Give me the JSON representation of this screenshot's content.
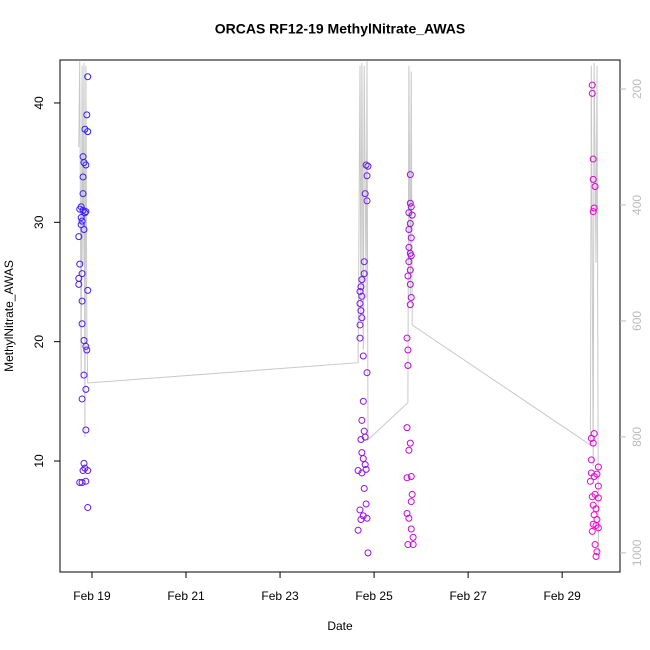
{
  "chart_data": {
    "type": "scatter",
    "title": "ORCAS RF12-19 MethylNitrate_AWAS",
    "xlabel": "Date",
    "ylabel": "MethylNitrate_AWAS",
    "xlim": [
      18.32,
      30.23
    ],
    "xticks": [
      {
        "value": 19,
        "label": "Feb 19"
      },
      {
        "value": 21,
        "label": "Feb 21"
      },
      {
        "value": 23,
        "label": "Feb 23"
      },
      {
        "value": 25,
        "label": "Feb 25"
      },
      {
        "value": 27,
        "label": "Feb 27"
      },
      {
        "value": 29,
        "label": "Feb 29"
      }
    ],
    "ylim": [
      0.7,
      43.6
    ],
    "yticks": [
      10,
      20,
      30,
      40
    ],
    "y2lim": [
      1033,
      150
    ],
    "y2ticks": [
      200,
      400,
      600,
      800,
      1000
    ],
    "y2color": "#bbbbbb",
    "series": [
      {
        "colormap": [
          "#2a1fff",
          "#ff00cc"
        ],
        "x": [
          18.91,
          18.89,
          18.85,
          18.91,
          18.81,
          18.83,
          18.87,
          18.81,
          18.81,
          18.77,
          18.74,
          18.81,
          18.85,
          18.77,
          18.87,
          18.79,
          18.77,
          18.83,
          18.72,
          18.74,
          18.79,
          18.72,
          18.72,
          18.91,
          18.79,
          18.79,
          18.83,
          18.87,
          18.89,
          18.83,
          18.87,
          18.79,
          18.87,
          18.83,
          18.85,
          18.81,
          18.87,
          18.91,
          18.74,
          18.79,
          18.91,
          24.83,
          24.87,
          24.85,
          24.81,
          24.85,
          24.79,
          24.79,
          24.74,
          24.72,
          24.7,
          24.74,
          24.7,
          24.72,
          24.74,
          24.7,
          24.7,
          24.77,
          24.85,
          24.77,
          24.74,
          24.79,
          24.72,
          24.81,
          24.74,
          24.77,
          24.81,
          24.66,
          24.74,
          24.83,
          24.79,
          24.7,
          24.77,
          24.85,
          24.72,
          24.66,
          24.87,
          24.83,
          25.77,
          25.77,
          25.79,
          25.74,
          25.81,
          25.77,
          25.74,
          25.79,
          25.74,
          25.77,
          25.79,
          25.74,
          25.77,
          25.72,
          25.77,
          25.79,
          25.77,
          25.7,
          25.72,
          25.72,
          25.7,
          25.77,
          25.74,
          25.7,
          25.79,
          25.81,
          25.79,
          25.7,
          25.74,
          25.79,
          25.83,
          25.83,
          25.72,
          29.64,
          29.64,
          29.66,
          29.66,
          29.7,
          29.68,
          29.66,
          29.68,
          29.62,
          29.66,
          29.62,
          29.77,
          29.62,
          29.68,
          29.74,
          29.6,
          29.77,
          29.64,
          29.7,
          29.77,
          29.66,
          29.72,
          29.68,
          29.74,
          29.66,
          29.72,
          29.77,
          29.64,
          29.7,
          29.74,
          29.72
        ],
        "values": [
          42.2,
          39.0,
          37.8,
          37.6,
          35.5,
          35.0,
          34.8,
          33.8,
          32.4,
          31.3,
          31.1,
          31.0,
          30.8,
          30.4,
          30.9,
          30.1,
          29.8,
          29.4,
          28.8,
          26.5,
          25.7,
          25.3,
          24.8,
          24.3,
          23.4,
          21.5,
          20.1,
          19.6,
          19.3,
          17.2,
          16.0,
          15.2,
          12.6,
          9.8,
          9.4,
          9.2,
          8.3,
          9.2,
          8.2,
          8.2,
          6.1,
          34.8,
          34.7,
          33.9,
          32.4,
          31.8,
          26.7,
          25.7,
          25.2,
          24.6,
          24.2,
          23.8,
          23.2,
          22.6,
          22.0,
          21.4,
          20.3,
          18.8,
          17.4,
          15.0,
          13.4,
          12.5,
          11.8,
          12.0,
          10.7,
          10.2,
          9.7,
          9.2,
          9.0,
          9.3,
          7.7,
          5.9,
          5.4,
          5.2,
          5.1,
          4.2,
          2.3,
          6.4,
          34.0,
          31.6,
          31.3,
          30.8,
          30.6,
          29.9,
          29.4,
          28.7,
          27.9,
          27.4,
          27.2,
          26.7,
          26.0,
          25.5,
          24.8,
          23.7,
          23.1,
          20.3,
          19.3,
          18.0,
          12.8,
          11.5,
          10.9,
          8.6,
          8.7,
          7.2,
          6.6,
          5.6,
          5.2,
          4.3,
          3.6,
          3.0,
          3.0,
          41.5,
          40.8,
          35.3,
          33.6,
          33.0,
          31.2,
          30.9,
          12.3,
          11.9,
          11.5,
          10.1,
          9.5,
          9.0,
          8.7,
          8.9,
          8.3,
          7.9,
          7.0,
          7.2,
          6.9,
          6.3,
          6.0,
          5.5,
          5.1,
          4.7,
          4.6,
          4.4,
          4.1,
          3.0,
          2.4,
          2.0
        ]
      },
      {
        "type": "line",
        "axis": "y2",
        "color": "#c8c8c8",
        "x": [
          18.72,
          18.74,
          18.77,
          18.79,
          18.81,
          18.83,
          18.85,
          18.87,
          18.89,
          18.91,
          24.66,
          24.7,
          24.72,
          24.74,
          24.77,
          24.79,
          24.83,
          24.85,
          24.87,
          25.72,
          25.74,
          25.77,
          25.79,
          25.81,
          29.6,
          29.62,
          29.66,
          29.68,
          29.72,
          29.74,
          29.77
        ],
        "values": [
          300,
          152,
          700,
          160,
          500,
          155,
          800,
          160,
          600,
          707,
          672,
          160,
          600,
          155,
          650,
          160,
          560,
          152,
          805,
          741,
          160,
          560,
          170,
          607,
          814,
          160,
          850,
          155,
          500,
          160,
          1000
        ]
      }
    ]
  }
}
